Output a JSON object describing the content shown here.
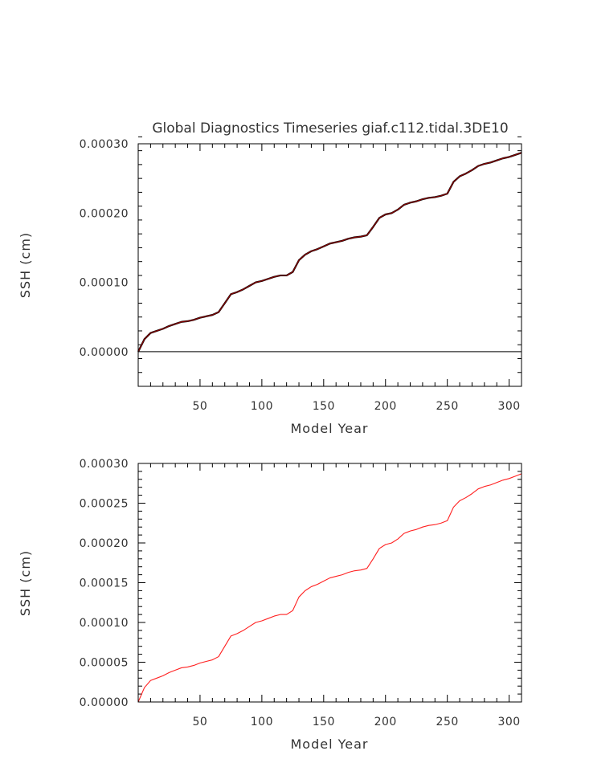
{
  "title": "Global Diagnostics Timeseries giaf.c112.tidal.3DE10",
  "colors": {
    "top_series": "#8b0000",
    "top_series_shadow": "#000000",
    "bottom_series": "#ff2020",
    "zero_line": "#000000",
    "axes": "#000000"
  },
  "chart_data": [
    {
      "type": "line",
      "title": "Global Diagnostics Timeseries giaf.c112.tidal.3DE10",
      "xlabel": "Model Year",
      "ylabel": "SSH (cm)",
      "xlim": [
        0,
        310
      ],
      "ylim": [
        -5e-05,
        0.0003
      ],
      "xticks": [
        "50",
        "100",
        "150",
        "200",
        "250",
        "300"
      ],
      "yticks": [
        "0.00000",
        "0.00010",
        "0.00020",
        "0.00030"
      ],
      "zero_line": true,
      "grid": false,
      "series": [
        {
          "x": [
            0,
            5,
            10,
            15,
            20,
            25,
            30,
            35,
            40,
            45,
            50,
            55,
            60,
            65,
            70,
            75,
            80,
            85,
            90,
            95,
            100,
            105,
            110,
            115,
            120,
            125,
            130,
            135,
            140,
            145,
            150,
            155,
            160,
            165,
            170,
            175,
            180,
            185,
            190,
            195,
            200,
            205,
            210,
            215,
            220,
            225,
            230,
            235,
            240,
            245,
            250,
            255,
            260,
            265,
            270,
            275,
            280,
            285,
            290,
            295,
            300,
            305,
            310
          ],
          "y": [
            0.0,
            1.8e-05,
            2.7e-05,
            3e-05,
            3.3e-05,
            3.7e-05,
            4e-05,
            4.3e-05,
            4.4e-05,
            4.6e-05,
            4.9e-05,
            5.1e-05,
            5.3e-05,
            5.7e-05,
            7e-05,
            8.3e-05,
            8.6e-05,
            9e-05,
            9.5e-05,
            0.0001,
            0.000102,
            0.000105,
            0.000108,
            0.00011,
            0.00011,
            0.000115,
            0.000132,
            0.00014,
            0.000145,
            0.000148,
            0.000152,
            0.000156,
            0.000158,
            0.00016,
            0.000163,
            0.000165,
            0.000166,
            0.000168,
            0.00018,
            0.000193,
            0.000198,
            0.0002,
            0.000205,
            0.000212,
            0.000215,
            0.000217,
            0.00022,
            0.000222,
            0.000223,
            0.000225,
            0.000228,
            0.000245,
            0.000253,
            0.000257,
            0.000262,
            0.000268,
            0.000271,
            0.000273,
            0.000276,
            0.000279,
            0.000281,
            0.000284,
            0.000287
          ]
        }
      ]
    },
    {
      "type": "line",
      "title": "",
      "xlabel": "Model Year",
      "ylabel": "SSH (cm)",
      "xlim": [
        0,
        310
      ],
      "ylim": [
        0,
        0.0003
      ],
      "xticks": [
        "50",
        "100",
        "150",
        "200",
        "250",
        "300"
      ],
      "yticks": [
        "0.00000",
        "0.00005",
        "0.00010",
        "0.00015",
        "0.00020",
        "0.00025",
        "0.00030"
      ],
      "zero_line": false,
      "grid": false,
      "series": [
        {
          "x": [
            0,
            5,
            10,
            15,
            20,
            25,
            30,
            35,
            40,
            45,
            50,
            55,
            60,
            65,
            70,
            75,
            80,
            85,
            90,
            95,
            100,
            105,
            110,
            115,
            120,
            125,
            130,
            135,
            140,
            145,
            150,
            155,
            160,
            165,
            170,
            175,
            180,
            185,
            190,
            195,
            200,
            205,
            210,
            215,
            220,
            225,
            230,
            235,
            240,
            245,
            250,
            255,
            260,
            265,
            270,
            275,
            280,
            285,
            290,
            295,
            300,
            305,
            310
          ],
          "y": [
            0.0,
            1.8e-05,
            2.7e-05,
            3e-05,
            3.3e-05,
            3.7e-05,
            4e-05,
            4.3e-05,
            4.4e-05,
            4.6e-05,
            4.9e-05,
            5.1e-05,
            5.3e-05,
            5.7e-05,
            7e-05,
            8.3e-05,
            8.6e-05,
            9e-05,
            9.5e-05,
            0.0001,
            0.000102,
            0.000105,
            0.000108,
            0.00011,
            0.00011,
            0.000115,
            0.000132,
            0.00014,
            0.000145,
            0.000148,
            0.000152,
            0.000156,
            0.000158,
            0.00016,
            0.000163,
            0.000165,
            0.000166,
            0.000168,
            0.00018,
            0.000193,
            0.000198,
            0.0002,
            0.000205,
            0.000212,
            0.000215,
            0.000217,
            0.00022,
            0.000222,
            0.000223,
            0.000225,
            0.000228,
            0.000245,
            0.000253,
            0.000257,
            0.000262,
            0.000268,
            0.000271,
            0.000273,
            0.000276,
            0.000279,
            0.000281,
            0.000284,
            0.000287
          ]
        }
      ]
    }
  ]
}
